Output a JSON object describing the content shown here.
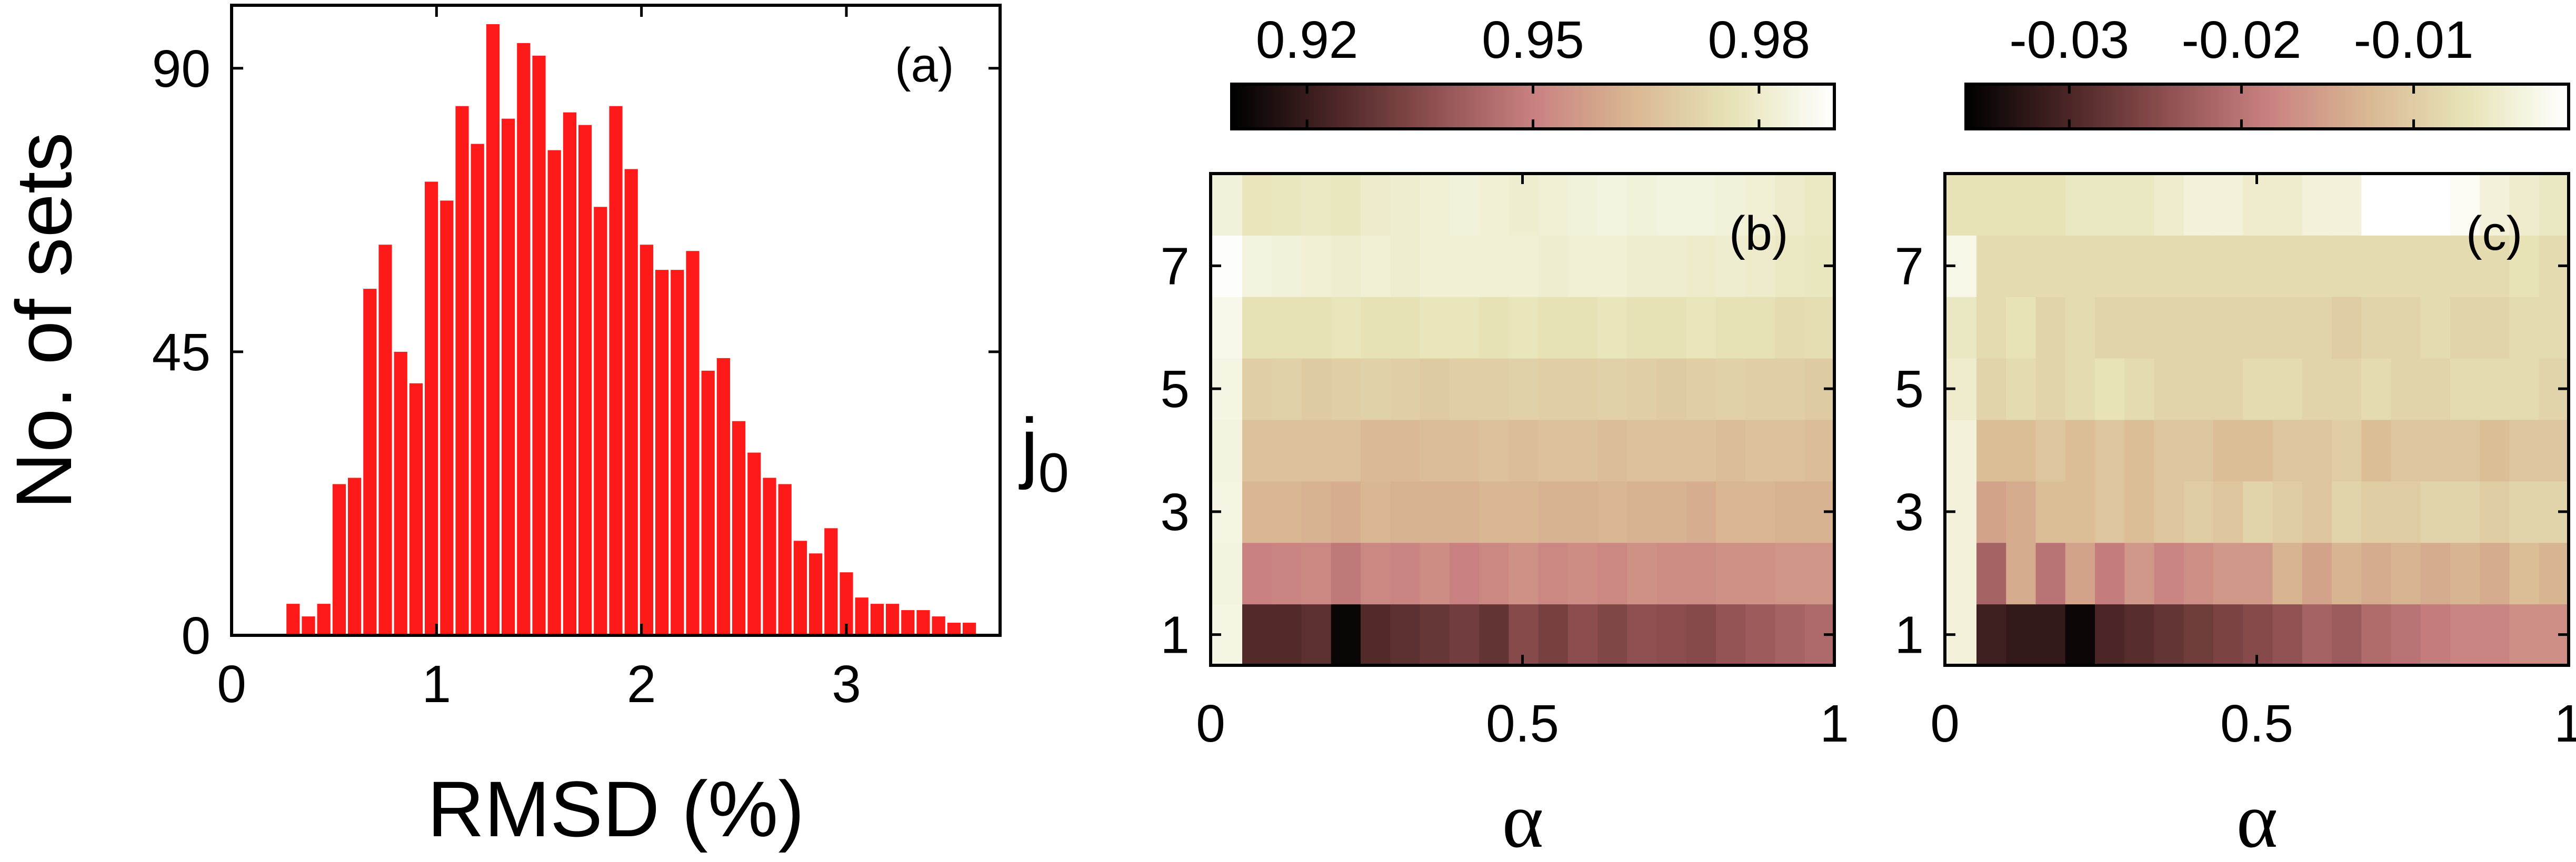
{
  "chart_data": [
    {
      "type": "bar",
      "panel_label": "(a)",
      "xlabel": "RMSD (%)",
      "ylabel": "No. of sets",
      "xlim": [
        0,
        3.75
      ],
      "ylim": [
        0,
        100
      ],
      "xticks": [
        0,
        1,
        2,
        3
      ],
      "yticks": [
        0,
        45,
        90
      ],
      "bar_color": "#ff1a1a",
      "bin_width": 0.075,
      "x": [
        0.3,
        0.375,
        0.45,
        0.525,
        0.6,
        0.675,
        0.75,
        0.825,
        0.9,
        0.975,
        1.05,
        1.125,
        1.2,
        1.275,
        1.35,
        1.425,
        1.5,
        1.575,
        1.65,
        1.725,
        1.8,
        1.875,
        1.95,
        2.025,
        2.1,
        2.175,
        2.25,
        2.325,
        2.4,
        2.475,
        2.55,
        2.625,
        2.7,
        2.775,
        2.85,
        2.925,
        3.0,
        3.075,
        3.15,
        3.225,
        3.3,
        3.375,
        3.45,
        3.525,
        3.6
      ],
      "values": [
        5,
        3,
        5,
        24,
        25,
        55,
        62,
        45,
        40,
        72,
        69,
        84,
        78,
        97,
        82,
        94,
        92,
        77,
        83,
        81,
        68,
        84,
        74,
        62,
        58,
        58,
        61,
        42,
        44,
        34,
        29,
        25,
        24,
        15,
        13,
        17,
        10,
        6,
        5,
        5,
        4,
        4,
        3,
        2,
        2
      ]
    },
    {
      "type": "heatmap",
      "panel_label": "(b)",
      "xlabel": "α",
      "ylabel": "j",
      "ylabel_sub": "0",
      "xticks": [
        0,
        0.5,
        1
      ],
      "yticks": [
        1,
        3,
        5,
        7
      ],
      "xlim": [
        0,
        1
      ],
      "ylim": [
        0.5,
        8.5
      ],
      "colorbar": {
        "ticks": [
          "0.92",
          "0.95",
          "0.98"
        ],
        "range": [
          0.91,
          0.99
        ]
      },
      "colormap": [
        "#000000",
        "#4a2525",
        "#8e4f50",
        "#c98080",
        "#d9b892",
        "#e7e4b8",
        "#ffffff"
      ],
      "rows_y": [
        1,
        2,
        3,
        4,
        5,
        6,
        7,
        8
      ],
      "cols_alpha": [
        0.05,
        0.1,
        0.15,
        0.2,
        0.25,
        0.3,
        0.35,
        0.4,
        0.45,
        0.5,
        0.55,
        0.6,
        0.65,
        0.7,
        0.75,
        0.8,
        0.85,
        0.9,
        0.95,
        1.0
      ],
      "left_column_values": [
        0.985,
        0.984,
        0.985,
        0.984,
        0.985,
        0.986,
        0.989,
        0.983
      ],
      "z": [
        [
          0.925,
          0.925,
          0.927,
          0.912,
          0.925,
          0.927,
          0.929,
          0.931,
          0.928,
          0.935,
          0.932,
          0.936,
          0.934,
          0.937,
          0.936,
          0.935,
          0.938,
          0.94,
          0.942,
          0.944
        ],
        [
          0.95,
          0.951,
          0.952,
          0.948,
          0.952,
          0.951,
          0.953,
          0.95,
          0.952,
          0.954,
          0.952,
          0.953,
          0.952,
          0.954,
          0.953,
          0.953,
          0.954,
          0.954,
          0.955,
          0.955
        ],
        [
          0.963,
          0.963,
          0.962,
          0.961,
          0.963,
          0.962,
          0.962,
          0.962,
          0.963,
          0.963,
          0.962,
          0.962,
          0.963,
          0.962,
          0.962,
          0.961,
          0.963,
          0.963,
          0.962,
          0.962
        ],
        [
          0.966,
          0.966,
          0.966,
          0.966,
          0.964,
          0.964,
          0.965,
          0.965,
          0.966,
          0.965,
          0.966,
          0.966,
          0.965,
          0.966,
          0.966,
          0.966,
          0.965,
          0.966,
          0.966,
          0.965
        ],
        [
          0.97,
          0.971,
          0.969,
          0.97,
          0.971,
          0.97,
          0.969,
          0.97,
          0.97,
          0.971,
          0.97,
          0.97,
          0.971,
          0.97,
          0.969,
          0.97,
          0.971,
          0.97,
          0.97,
          0.969
        ],
        [
          0.976,
          0.976,
          0.976,
          0.977,
          0.976,
          0.976,
          0.977,
          0.977,
          0.976,
          0.977,
          0.976,
          0.976,
          0.977,
          0.976,
          0.976,
          0.977,
          0.976,
          0.976,
          0.974,
          0.975
        ],
        [
          0.984,
          0.983,
          0.982,
          0.981,
          0.982,
          0.981,
          0.982,
          0.982,
          0.982,
          0.982,
          0.981,
          0.982,
          0.982,
          0.981,
          0.981,
          0.98,
          0.981,
          0.98,
          0.979,
          0.978
        ],
        [
          0.977,
          0.978,
          0.979,
          0.978,
          0.98,
          0.981,
          0.982,
          0.983,
          0.982,
          0.981,
          0.982,
          0.983,
          0.984,
          0.983,
          0.984,
          0.984,
          0.983,
          0.982,
          0.98,
          0.979
        ]
      ]
    },
    {
      "type": "heatmap",
      "panel_label": "(c)",
      "xlabel": "α",
      "ylabel": "",
      "xticks": [
        0,
        0.5,
        1
      ],
      "yticks": [
        1,
        3,
        5,
        7
      ],
      "xlim": [
        0,
        1
      ],
      "ylim": [
        0.5,
        8.5
      ],
      "colorbar": {
        "ticks": [
          "-0.03",
          "-0.02",
          "-0.01"
        ],
        "range": [
          -0.036,
          -0.001
        ]
      },
      "colormap": [
        "#000000",
        "#4a2525",
        "#8e4f50",
        "#c98080",
        "#d9b892",
        "#e7e4b8",
        "#ffffff"
      ],
      "rows_y": [
        1,
        2,
        3,
        4,
        5,
        6,
        7,
        8
      ],
      "cols_alpha": [
        0.05,
        0.1,
        0.15,
        0.2,
        0.25,
        0.3,
        0.35,
        0.4,
        0.45,
        0.5,
        0.55,
        0.6,
        0.65,
        0.7,
        0.75,
        0.8,
        0.85,
        0.9,
        0.95,
        1.0
      ],
      "left_column_values": [
        -0.004,
        -0.004,
        -0.004,
        -0.004,
        -0.005,
        -0.006,
        -0.003,
        -0.007
      ],
      "z": [
        [
          -0.031,
          -0.032,
          -0.032,
          -0.035,
          -0.03,
          -0.029,
          -0.028,
          -0.027,
          -0.026,
          -0.025,
          -0.024,
          -0.022,
          -0.023,
          -0.021,
          -0.02,
          -0.019,
          -0.018,
          -0.018,
          -0.017,
          -0.017
        ],
        [
          -0.022,
          -0.014,
          -0.02,
          -0.015,
          -0.019,
          -0.016,
          -0.018,
          -0.017,
          -0.016,
          -0.016,
          -0.013,
          -0.015,
          -0.013,
          -0.014,
          -0.013,
          -0.014,
          -0.013,
          -0.014,
          -0.012,
          -0.013
        ],
        [
          -0.015,
          -0.014,
          -0.012,
          -0.012,
          -0.011,
          -0.012,
          -0.011,
          -0.01,
          -0.011,
          -0.009,
          -0.01,
          -0.011,
          -0.009,
          -0.01,
          -0.01,
          -0.009,
          -0.009,
          -0.01,
          -0.009,
          -0.009
        ],
        [
          -0.012,
          -0.012,
          -0.011,
          -0.012,
          -0.011,
          -0.012,
          -0.011,
          -0.011,
          -0.012,
          -0.012,
          -0.011,
          -0.011,
          -0.01,
          -0.012,
          -0.011,
          -0.011,
          -0.011,
          -0.012,
          -0.011,
          -0.011
        ],
        [
          -0.009,
          -0.008,
          -0.009,
          -0.008,
          -0.007,
          -0.008,
          -0.009,
          -0.009,
          -0.009,
          -0.008,
          -0.008,
          -0.009,
          -0.009,
          -0.008,
          -0.009,
          -0.009,
          -0.008,
          -0.008,
          -0.008,
          -0.009
        ],
        [
          -0.008,
          -0.007,
          -0.009,
          -0.008,
          -0.009,
          -0.009,
          -0.009,
          -0.009,
          -0.009,
          -0.009,
          -0.009,
          -0.009,
          -0.01,
          -0.009,
          -0.009,
          -0.008,
          -0.009,
          -0.009,
          -0.008,
          -0.008
        ],
        [
          -0.008,
          -0.008,
          -0.008,
          -0.008,
          -0.008,
          -0.008,
          -0.008,
          -0.008,
          -0.008,
          -0.008,
          -0.008,
          -0.008,
          -0.008,
          -0.008,
          -0.008,
          -0.008,
          -0.008,
          -0.008,
          -0.007,
          -0.008
        ],
        [
          -0.007,
          -0.007,
          -0.007,
          -0.006,
          -0.006,
          -0.006,
          -0.005,
          -0.004,
          -0.004,
          -0.005,
          -0.005,
          -0.004,
          -0.004,
          -0.001,
          -0.001,
          -0.001,
          -0.002,
          -0.004,
          -0.005,
          -0.006
        ]
      ]
    }
  ]
}
